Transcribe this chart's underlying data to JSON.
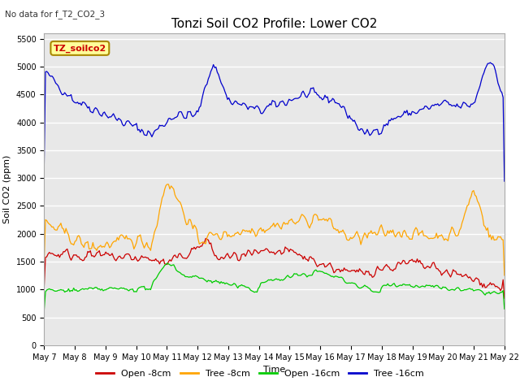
{
  "title": "Tonzi Soil CO2 Profile: Lower CO2",
  "top_left_text": "No data for f_T2_CO2_3",
  "ylabel": "Soil CO2 (ppm)",
  "xlabel": "Time",
  "legend_label": "TZ_soilco2",
  "ylim": [
    0,
    5600
  ],
  "yticks": [
    0,
    500,
    1000,
    1500,
    2000,
    2500,
    3000,
    3500,
    4000,
    4500,
    5000,
    5500
  ],
  "xtick_labels": [
    "May 7",
    "May 8",
    "May 9",
    "May 10",
    "May 11",
    "May 12",
    "May 13",
    "May 14",
    "May 15",
    "May 16",
    "May 17",
    "May 18",
    "May 19",
    "May 20",
    "May 21",
    "May 22"
  ],
  "colors": {
    "open_8cm": "#cc0000",
    "tree_8cm": "#ffa500",
    "open_16cm": "#00cc00",
    "tree_16cm": "#0000cc"
  },
  "legend_entries": [
    {
      "label": "Open -8cm",
      "color": "#cc0000"
    },
    {
      "label": "Tree -8cm",
      "color": "#ffa500"
    },
    {
      "label": "Open -16cm",
      "color": "#00cc00"
    },
    {
      "label": "Tree -16cm",
      "color": "#0000cc"
    }
  ],
  "plot_bg_color": "#e8e8e8",
  "grid_color": "#ffffff",
  "title_fontsize": 11,
  "axis_label_fontsize": 8,
  "tick_fontsize": 7,
  "legend_fontsize": 8
}
